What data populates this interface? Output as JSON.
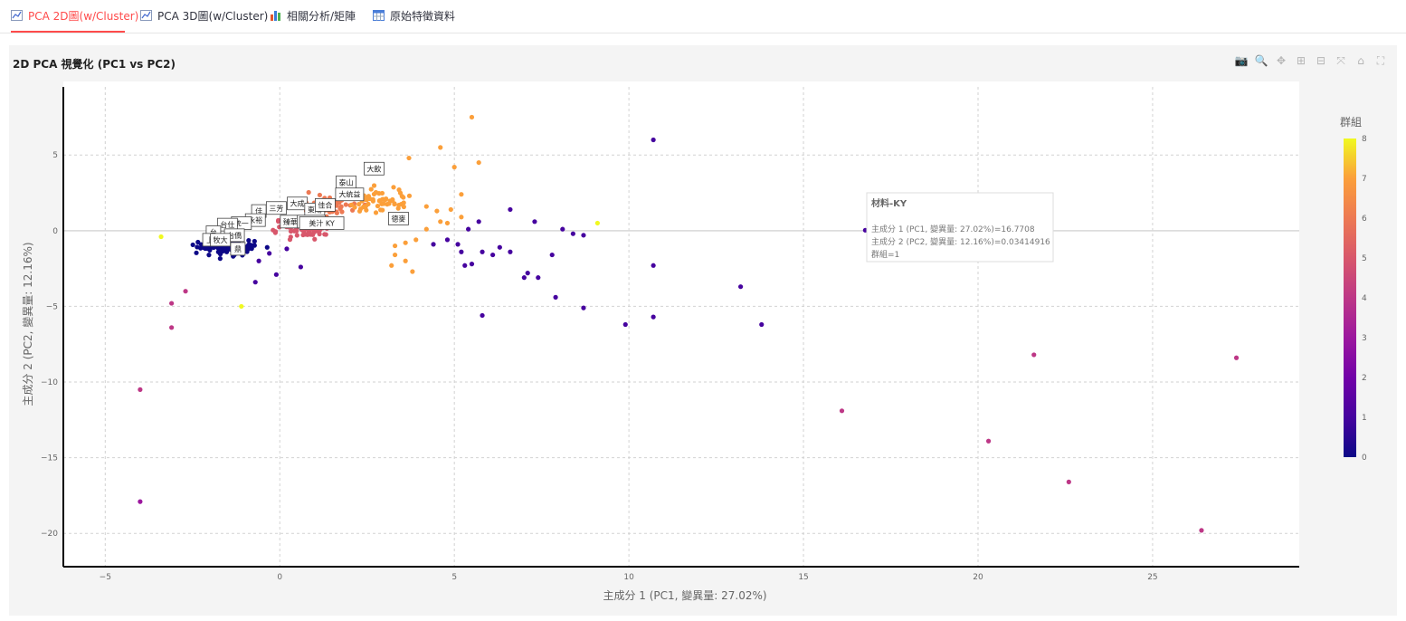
{
  "tabs": [
    {
      "label": "PCA 2D圖(w/Cluster)",
      "icon": "line-chart-icon",
      "active": true
    },
    {
      "label": "PCA 3D圖(w/Cluster)",
      "icon": "line-chart-icon",
      "active": false
    },
    {
      "label": "相關分析/矩陣",
      "icon": "bar-chart-icon",
      "active": false
    },
    {
      "label": "原始特徵資料",
      "icon": "calendar-table-icon",
      "active": false
    }
  ],
  "panel": {
    "title": "2D PCA 視覺化 (PC1 vs PC2)"
  },
  "modebar": [
    {
      "name": "camera-icon",
      "glyph": "📷"
    },
    {
      "name": "zoom-icon",
      "glyph": "🔍"
    },
    {
      "name": "pan-icon",
      "glyph": "✥"
    },
    {
      "name": "zoom-in-icon",
      "glyph": "⊞"
    },
    {
      "name": "zoom-out-icon",
      "glyph": "⊟"
    },
    {
      "name": "autoscale-icon",
      "glyph": "⤧"
    },
    {
      "name": "home-icon",
      "glyph": "⌂"
    },
    {
      "name": "fullscreen-icon",
      "glyph": "⛶"
    }
  ],
  "tooltip": {
    "name": "材料-KY",
    "line1": "主成分 1 (PC1, 變異量: 27.02%)=16.7708",
    "line2": "主成分 2 (PC2, 變異量: 12.16%)=0.03414916",
    "line3": "群組=1"
  },
  "chart_data": {
    "type": "scatter",
    "xlabel": "主成分 1 (PC1, 變異量: 27.02%)",
    "ylabel": "主成分 2 (PC2, 變異量: 12.16%)",
    "xlim": [
      -6.2,
      29.2
    ],
    "ylim": [
      -22.2,
      9.5
    ],
    "xticks": [
      -5,
      0,
      5,
      10,
      15,
      20,
      25
    ],
    "yticks": [
      -20,
      -15,
      -10,
      -5,
      0,
      5
    ],
    "grid": true,
    "colorbar": {
      "title": "群組",
      "range": [
        0,
        8
      ],
      "ticks": [
        0,
        1,
        2,
        3,
        4,
        5,
        6,
        7,
        8
      ]
    },
    "colors": {
      "0": "#0d0887",
      "1": "#46039f",
      "2": "#7201a8",
      "3": "#9c179e",
      "4": "#bd3786",
      "5": "#d8576b",
      "6": "#ed7953",
      "7": "#fb9f3a",
      "8": "#f0f921"
    },
    "points": [
      [
        16.77,
        0.03,
        1
      ],
      [
        10.7,
        6.0,
        1
      ],
      [
        10.7,
        -2.3,
        1
      ],
      [
        10.7,
        -5.7,
        1
      ],
      [
        9.9,
        -6.2,
        1
      ],
      [
        13.2,
        -3.7,
        1
      ],
      [
        13.8,
        -6.2,
        1
      ],
      [
        8.7,
        -5.1,
        1
      ],
      [
        7.9,
        -4.4,
        1
      ],
      [
        7.8,
        -1.6,
        1
      ],
      [
        7.4,
        -3.1,
        1
      ],
      [
        7.1,
        -2.8,
        1
      ],
      [
        7.0,
        -3.1,
        1
      ],
      [
        8.1,
        0.1,
        1
      ],
      [
        8.4,
        -0.2,
        1
      ],
      [
        8.7,
        -0.3,
        1
      ],
      [
        6.6,
        1.4,
        1
      ],
      [
        7.3,
        0.6,
        1
      ],
      [
        6.6,
        -1.4,
        1
      ],
      [
        6.3,
        -1.1,
        1
      ],
      [
        6.1,
        -1.6,
        1
      ],
      [
        5.8,
        -1.4,
        1
      ],
      [
        5.5,
        -2.2,
        1
      ],
      [
        5.3,
        -2.3,
        1
      ],
      [
        5.2,
        -1.4,
        1
      ],
      [
        5.1,
        -0.9,
        1
      ],
      [
        4.8,
        -0.6,
        1
      ],
      [
        4.4,
        -0.9,
        1
      ],
      [
        5.8,
        -5.6,
        1
      ],
      [
        5.4,
        0.1,
        1
      ],
      [
        5.7,
        0.6,
        1
      ],
      [
        0.6,
        -2.4,
        1
      ],
      [
        0.2,
        -1.2,
        1
      ],
      [
        -0.1,
        -2.9,
        1
      ],
      [
        -0.7,
        -3.4,
        1
      ],
      [
        -0.6,
        -2.0,
        1
      ],
      [
        -0.3,
        -1.5,
        1
      ],
      [
        21.6,
        -8.2,
        4
      ],
      [
        27.4,
        -8.4,
        4
      ],
      [
        16.1,
        -11.9,
        4
      ],
      [
        20.3,
        -13.9,
        4
      ],
      [
        22.6,
        -16.6,
        4
      ],
      [
        26.4,
        -19.8,
        4
      ],
      [
        -4.0,
        -10.5,
        4
      ],
      [
        -3.1,
        -4.8,
        4
      ],
      [
        -3.1,
        -6.4,
        4
      ],
      [
        -2.7,
        -4.0,
        4
      ],
      [
        -4.0,
        -17.9,
        3
      ],
      [
        -3.4,
        -0.4,
        8
      ],
      [
        9.1,
        0.5,
        8
      ],
      [
        -1.1,
        -5.0,
        8
      ],
      [
        5.5,
        7.5,
        7
      ],
      [
        4.6,
        5.5,
        7
      ],
      [
        5.7,
        4.5,
        7
      ],
      [
        5.0,
        4.2,
        7
      ],
      [
        3.7,
        4.8,
        7
      ],
      [
        5.2,
        2.4,
        7
      ],
      [
        4.9,
        1.4,
        7
      ],
      [
        5.2,
        0.9,
        7
      ],
      [
        4.5,
        1.3,
        7
      ],
      [
        4.2,
        1.6,
        7
      ],
      [
        4.8,
        0.5,
        7
      ],
      [
        3.6,
        -0.8,
        7
      ],
      [
        3.9,
        -0.6,
        7
      ],
      [
        3.3,
        -1.6,
        7
      ],
      [
        3.6,
        -2.0,
        7
      ],
      [
        3.8,
        -2.7,
        7
      ],
      [
        3.2,
        -2.3,
        7
      ],
      [
        3.3,
        -1.0,
        7
      ],
      [
        4.2,
        0.1,
        7
      ],
      [
        4.6,
        0.6,
        7
      ]
    ],
    "labels": [
      {
        "text": "大飲",
        "x": 2.7,
        "y": 4.1
      },
      {
        "text": "泰山",
        "x": 1.9,
        "y": 3.2
      },
      {
        "text": "大統益",
        "x": 2.0,
        "y": 2.4
      },
      {
        "text": "德麥",
        "x": 3.4,
        "y": 0.8
      },
      {
        "text": "大成",
        "x": 0.5,
        "y": 1.8
      },
      {
        "text": "東陽",
        "x": 1.0,
        "y": 1.4
      },
      {
        "text": "佳合",
        "x": 1.3,
        "y": 1.7
      },
      {
        "text": "三芳",
        "x": -0.1,
        "y": 1.5
      },
      {
        "text": "佳",
        "x": -0.6,
        "y": 1.3
      },
      {
        "text": "永裕",
        "x": -0.7,
        "y": 0.7
      },
      {
        "text": "臻華",
        "x": 0.3,
        "y": 0.6
      },
      {
        "text": "大成長",
        "x": 0.9,
        "y": 0.6
      },
      {
        "text": "美汁 KY",
        "x": 1.2,
        "y": 0.5
      },
      {
        "text": "統一",
        "x": -1.1,
        "y": 0.5
      },
      {
        "text": "台仕",
        "x": -1.5,
        "y": 0.4
      },
      {
        "text": "台",
        "x": -1.9,
        "y": -0.1
      },
      {
        "text": "台僑",
        "x": -1.3,
        "y": -0.3
      },
      {
        "text": "上",
        "x": -2.0,
        "y": -0.6
      },
      {
        "text": "牧大",
        "x": -1.7,
        "y": -0.6
      },
      {
        "text": "鼎",
        "x": -1.2,
        "y": -1.2
      }
    ],
    "clusters": [
      {
        "group": 0,
        "n": 130,
        "cx": -1.5,
        "cy": -1.1,
        "sx": 0.75,
        "sy": 0.45
      },
      {
        "group": 5,
        "n": 80,
        "cx": 0.7,
        "cy": 0.2,
        "sx": 0.75,
        "sy": 0.55
      },
      {
        "group": 6,
        "n": 55,
        "cx": 1.6,
        "cy": 1.6,
        "sx": 0.75,
        "sy": 0.7
      },
      {
        "group": 7,
        "n": 60,
        "cx": 2.9,
        "cy": 2.0,
        "sx": 0.8,
        "sy": 0.85
      }
    ]
  }
}
